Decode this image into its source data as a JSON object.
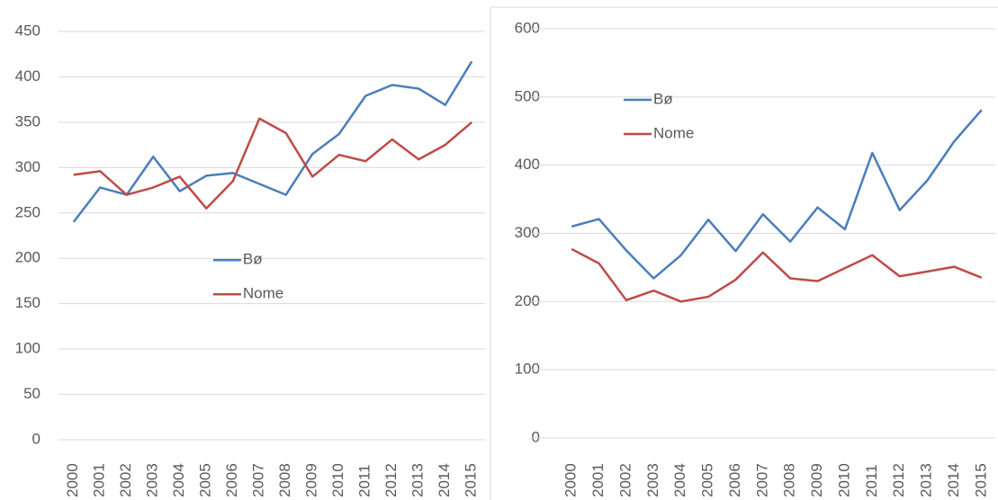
{
  "chart_data": [
    {
      "type": "line",
      "categories": [
        "2000",
        "2001",
        "2002",
        "2003",
        "2004",
        "2005",
        "2006",
        "2007",
        "2008",
        "2009",
        "2010",
        "2011",
        "2012",
        "2013",
        "2014",
        "2015"
      ],
      "series": [
        {
          "name": "Bø",
          "color": "#4a7ebb",
          "values": [
            240,
            278,
            270,
            312,
            274,
            291,
            294,
            282,
            270,
            315,
            337,
            379,
            391,
            387,
            369,
            417
          ]
        },
        {
          "name": "Nome",
          "color": "#be4b48",
          "values": [
            292,
            296,
            270,
            278,
            290,
            255,
            285,
            354,
            338,
            290,
            314,
            307,
            331,
            309,
            325,
            350
          ]
        }
      ],
      "ylim": [
        0,
        450
      ],
      "yticks": [
        0,
        50,
        100,
        150,
        200,
        250,
        300,
        350,
        400,
        450
      ],
      "grid": true,
      "legend": "center"
    },
    {
      "type": "line",
      "categories": [
        "2000",
        "2001",
        "2002",
        "2003",
        "2004",
        "2005",
        "2006",
        "2007",
        "2008",
        "2009",
        "2010",
        "2011",
        "2012",
        "2013",
        "2014",
        "2015"
      ],
      "series": [
        {
          "name": "Bø",
          "color": "#4a7ebb",
          "values": [
            310,
            321,
            275,
            234,
            268,
            320,
            274,
            328,
            288,
            338,
            306,
            418,
            334,
            377,
            435,
            481
          ]
        },
        {
          "name": "Nome",
          "color": "#be4b48",
          "values": [
            277,
            256,
            202,
            216,
            200,
            207,
            232,
            272,
            234,
            230,
            249,
            268,
            237,
            244,
            251,
            235
          ]
        }
      ],
      "ylim": [
        0,
        600
      ],
      "yticks": [
        0,
        100,
        200,
        300,
        400,
        500,
        600
      ],
      "grid": true,
      "legend": "upper left"
    }
  ]
}
